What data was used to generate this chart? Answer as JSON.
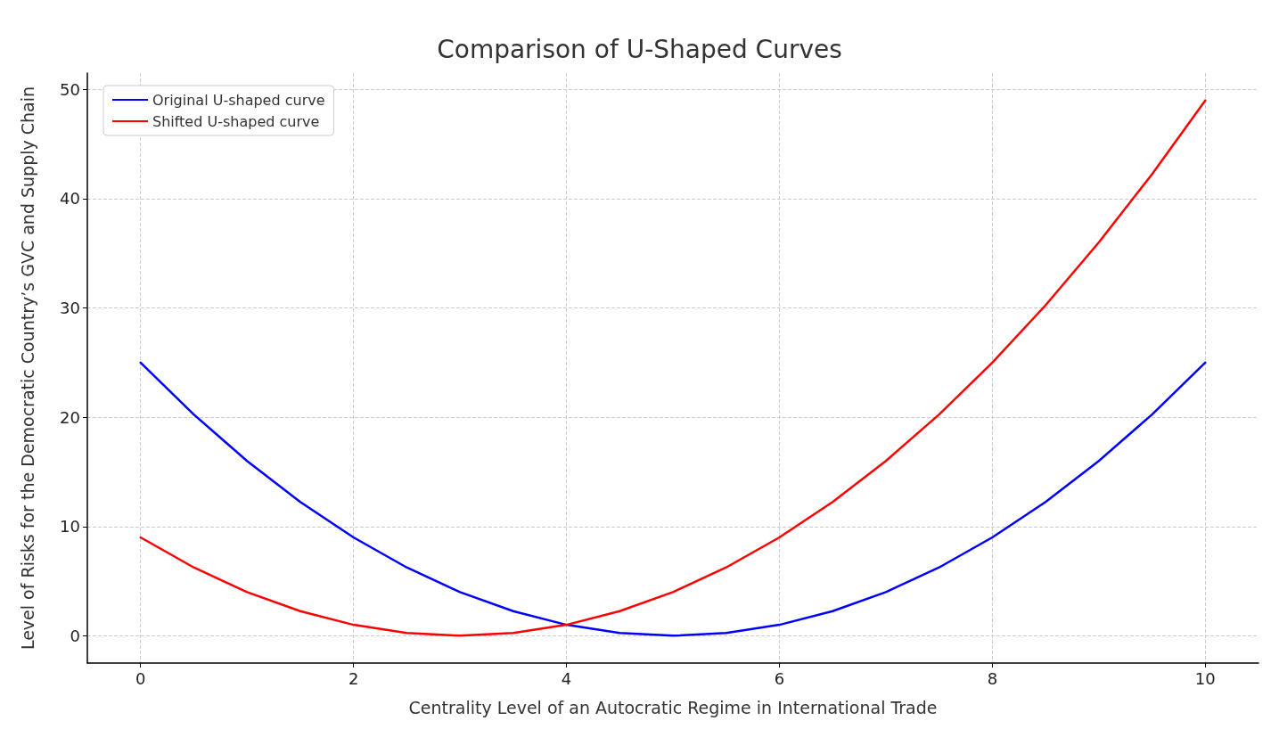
{
  "chart_data": {
    "type": "line",
    "title": "Comparison of U-Shaped Curves",
    "xlabel": "Centrality Level of an Autocratic Regime in International Trade",
    "ylabel": "Level of Risks for the Democratic Country’s GVC and Supply Chain",
    "x": [
      0,
      0.5,
      1,
      1.5,
      2,
      2.5,
      3,
      3.5,
      4,
      4.5,
      5,
      5.5,
      6,
      6.5,
      7,
      7.5,
      8,
      8.5,
      9,
      9.5,
      10
    ],
    "series": [
      {
        "name": "Original U-shaped curve",
        "color": "#0000ff",
        "values": [
          25,
          20.25,
          16,
          12.25,
          9,
          6.25,
          4,
          2.25,
          1,
          0.25,
          0,
          0.25,
          1,
          2.25,
          4,
          6.25,
          9,
          12.25,
          16,
          20.25,
          25
        ]
      },
      {
        "name": "Shifted U-shaped curve",
        "color": "#ff0000",
        "values": [
          9,
          6.25,
          4,
          2.25,
          1,
          0.25,
          0,
          0.25,
          1,
          2.25,
          4,
          6.25,
          9,
          12.25,
          16,
          20.25,
          25,
          30.25,
          36,
          42.25,
          49
        ]
      }
    ],
    "xlim": [
      -0.5,
      10.5
    ],
    "ylim": [
      -2.5,
      51.5
    ],
    "xticks": [
      0,
      2,
      4,
      6,
      8,
      10
    ],
    "yticks": [
      0,
      10,
      20,
      30,
      40,
      50
    ],
    "grid": true,
    "legend": "top left",
    "marker": "none",
    "line_style": "solid"
  }
}
